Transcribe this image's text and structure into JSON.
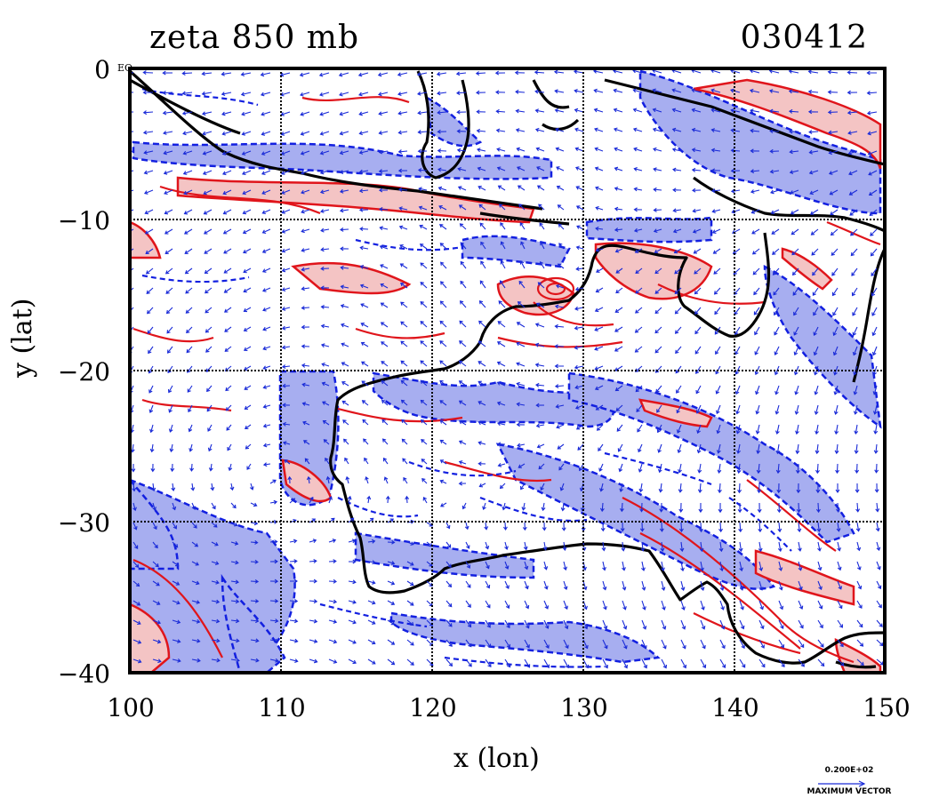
{
  "title": {
    "variable": "zeta  850  mb",
    "date": "030412"
  },
  "axes": {
    "x_label": "x (lon)",
    "y_label": "y (lat)",
    "x_ticks": [
      "100",
      "110",
      "120",
      "130",
      "140",
      "150"
    ],
    "y_ticks": [
      "0",
      "−10",
      "−20",
      "−30",
      "−40"
    ],
    "corner_mark": "EQ",
    "x_range": [
      100,
      150
    ],
    "y_range": [
      -40,
      0
    ]
  },
  "vector_legend": {
    "value": "0.200E+02",
    "label": "MAXIMUM VECTOR"
  },
  "colors": {
    "positive_vorticity_fill": "#f4c4c4",
    "positive_vorticity_line": "#e0151b",
    "negative_vorticity_fill": "#a7aef0",
    "negative_vorticity_line": "#1320e0",
    "coastline": "#000000",
    "grid": "#000000",
    "wind_vectors": "#1a2bd8"
  },
  "map": {
    "grid_lon": [
      110,
      120,
      130,
      140
    ],
    "grid_lat": [
      -10,
      -20,
      -30
    ],
    "layers": [
      "coastline",
      "positive vorticity contours",
      "negative vorticity contours",
      "850 mb wind vectors"
    ]
  }
}
